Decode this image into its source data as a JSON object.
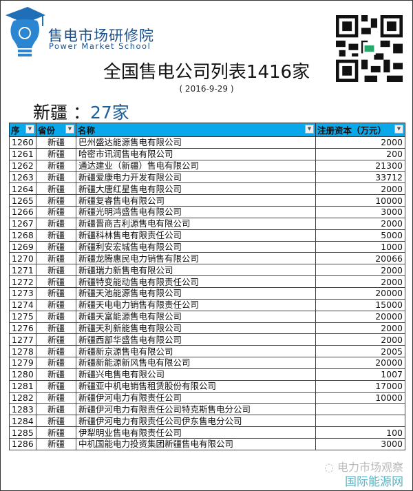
{
  "header": {
    "brand_cn": "售电市场研修院",
    "brand_en": "Power Market School",
    "title": "全国售电公司列表1416家",
    "date": "( 2016-9-29 )",
    "region": "新疆",
    "region_sep": " ：",
    "region_count": "27家"
  },
  "table": {
    "columns": [
      "序",
      "省份",
      "名称",
      "注册资本（万元）"
    ],
    "rows": [
      [
        "1260",
        "新疆",
        "巴州盛达能源售电有限公司",
        "2000"
      ],
      [
        "1261",
        "新疆",
        "哈密市讯润售电有限公司",
        "200"
      ],
      [
        "1262",
        "新疆",
        "通达建业（新疆）售电有限公司",
        "21300"
      ],
      [
        "1263",
        "新疆",
        "新疆爱康电力开发有限公司",
        "33712"
      ],
      [
        "1264",
        "新疆",
        "新疆大唐红星售电有限公司",
        "2000"
      ],
      [
        "1265",
        "新疆",
        "新疆复睿售电有限公司",
        "10000"
      ],
      [
        "1266",
        "新疆",
        "新疆光明鸿盛售电有限公司",
        "3000"
      ],
      [
        "1267",
        "新疆",
        "新疆晋商吉利源售电有限公司",
        "2000"
      ],
      [
        "1268",
        "新疆",
        "新疆科林售电有限责任公司",
        "5000"
      ],
      [
        "1269",
        "新疆",
        "新疆利安宏城售电有限公司",
        "1000"
      ],
      [
        "1270",
        "新疆",
        "新疆龙腾惠民电力销售有限公司",
        "20066"
      ],
      [
        "1271",
        "新疆",
        "新疆瑞力新售电有限公司",
        "2000"
      ],
      [
        "1272",
        "新疆",
        "新疆特变能动售电有限责任公司",
        "2000"
      ],
      [
        "1273",
        "新疆",
        "新疆天池能源售电有限公司",
        "20000"
      ],
      [
        "1274",
        "新疆",
        "新疆天电电力销售有限责任公司",
        "15000"
      ],
      [
        "1275",
        "新疆",
        "新疆天富能源售电有限公司",
        "20000"
      ],
      [
        "1276",
        "新疆",
        "新疆天利新能售电有限公司",
        "2000"
      ],
      [
        "1277",
        "新疆",
        "新疆西部华盛售电有限公司",
        "2000"
      ],
      [
        "1278",
        "新疆",
        "新疆新京源售电有限公司",
        "2005"
      ],
      [
        "1279",
        "新疆",
        "新疆新能源新风售电有限公司",
        "20000"
      ],
      [
        "1280",
        "新疆",
        "新疆兴电售电有限公司",
        "1007"
      ],
      [
        "1281",
        "新疆",
        "新疆亚中机电销售租赁股份有限公司",
        "17000"
      ],
      [
        "1282",
        "新疆",
        "新疆伊河电力有限责任公司",
        "10000"
      ],
      [
        "1283",
        "新疆",
        "新疆伊河电力有限责任公司特克斯售电分公司",
        ""
      ],
      [
        "1284",
        "新疆",
        "新疆伊河电力有限责任公司伊东售电分公司",
        ""
      ],
      [
        "1285",
        "新疆",
        "伊犁明业售电有限责任公司",
        "100"
      ],
      [
        "1286",
        "新疆",
        "中机国能电力投资集团新疆售电有限公司",
        "3000"
      ]
    ]
  },
  "footer": {
    "wechat": "电力市场观察",
    "site": "国际能源网"
  },
  "colors": {
    "header_bg": "#08a8ea",
    "brand": "#1a4f8a"
  }
}
